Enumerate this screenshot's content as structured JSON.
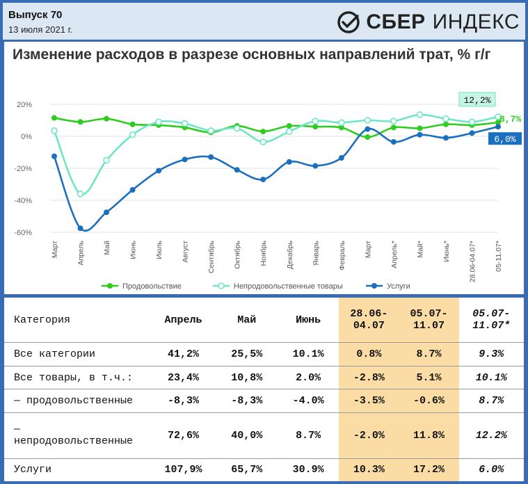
{
  "header": {
    "issue": "Выпуск 70",
    "date": "13 июля 2021 г.",
    "logo_sber": "СБЕР",
    "logo_index": "ИНДЕКС"
  },
  "colors": {
    "food": "#2ecc1f",
    "nonfood": "#6ee6c4",
    "services": "#1a6fbe",
    "highlight": "#fbdca5",
    "header_bg": "#dbe8f4",
    "frame": "#3a6cb5"
  },
  "chart_data": {
    "type": "line",
    "title": "Изменение расходов в разрезе основных направлений трат, % г/г",
    "categories": [
      "Март",
      "Апрель",
      "Май",
      "Июнь",
      "Июль",
      "Август",
      "Сентябрь",
      "Октябрь",
      "Ноябрь",
      "Декабрь",
      "Январь",
      "Февраль",
      "Март",
      "Апрель*",
      "Май*",
      "Июнь*",
      "28.06-04.07*",
      "05-11.07*"
    ],
    "y_ticks": [
      "20%",
      "0%",
      "-20%",
      "-40%",
      "-60%"
    ],
    "ylim": [
      -60,
      20
    ],
    "grid": true,
    "legend_position": "bottom",
    "series": [
      {
        "name": "Продовольствие",
        "color": "#2ecc1f",
        "values": [
          11.5,
          9,
          11,
          7.5,
          7,
          5.5,
          2.5,
          6.5,
          3,
          6.5,
          6,
          5.5,
          -0.5,
          5.5,
          5,
          7.5,
          7,
          8.7
        ]
      },
      {
        "name": "Непродовольственные товары",
        "color": "#6ee6c4",
        "values": [
          3.5,
          -36,
          -15,
          1,
          9,
          8,
          3.5,
          5,
          -3.5,
          3,
          9.5,
          8.5,
          10,
          9.5,
          13.5,
          11,
          9,
          12.2
        ]
      },
      {
        "name": "Услуги",
        "color": "#1a6fbe",
        "values": [
          -12.5,
          -57.5,
          -47.5,
          -33.5,
          -21.5,
          -14.5,
          -13,
          -21,
          -27,
          -16,
          -18.5,
          -13.5,
          4.5,
          -3.5,
          1,
          -1,
          2,
          6.0
        ]
      }
    ],
    "end_labels": [
      "12,2%",
      "8,7%",
      "6,0%"
    ]
  },
  "table": {
    "headers": [
      "Категория",
      "Апрель",
      "Май",
      "Июнь",
      "28.06-\n04.07",
      "05.07-\n11.07",
      "05.07-\n11.07*"
    ],
    "rows": [
      [
        "Все категории",
        "41,2%",
        "25,5%",
        "10.1%",
        "0.8%",
        "8.7%",
        "9.3%"
      ],
      [
        "Все товары, в т.ч.:",
        "23,4%",
        "10,8%",
        "2.0%",
        "-2.8%",
        "5.1%",
        "10.1%"
      ],
      [
        "— продовольственные",
        "-8,3%",
        "-8,3%",
        "-4.0%",
        "-3.5%",
        "-0.6%",
        "8.7%"
      ],
      [
        "—\nнепродовольственные",
        "72,6%",
        "40,0%",
        "8.7%",
        "-2.0%",
        "11.8%",
        "12.2%"
      ],
      [
        "Услуги",
        "107,9%",
        "65,7%",
        "30.9%",
        "10.3%",
        "17.2%",
        "6.0%"
      ]
    ]
  }
}
